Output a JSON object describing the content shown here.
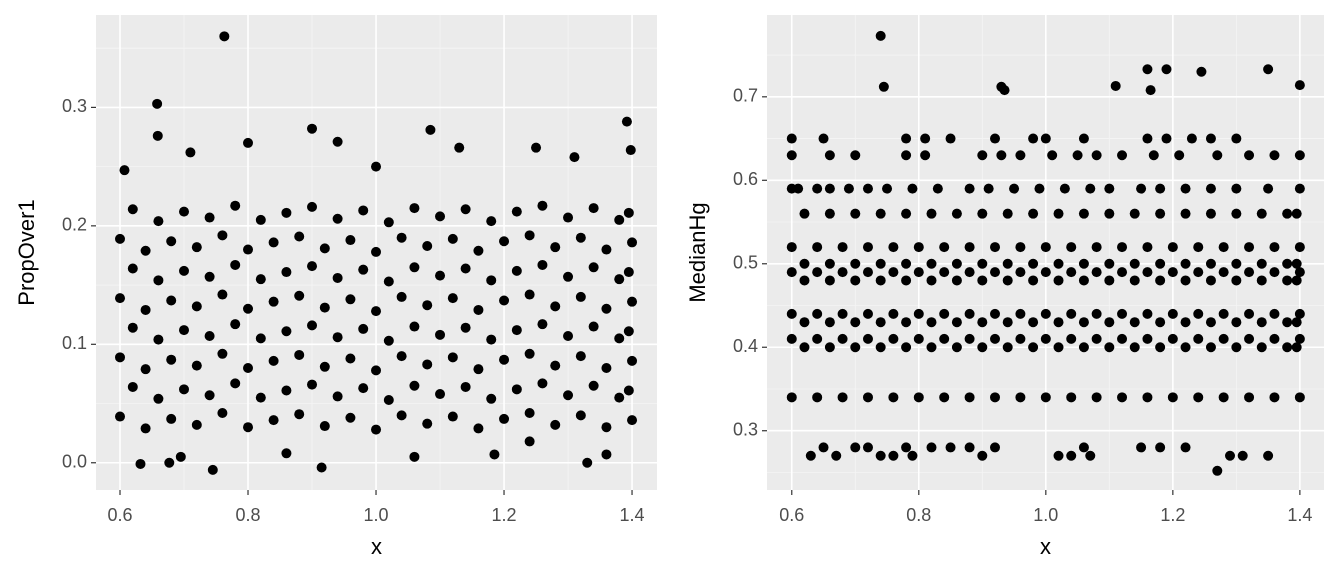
{
  "chart_data": [
    {
      "type": "scatter",
      "xlabel": "x",
      "ylabel": "PropOver1",
      "color": "#000000",
      "grid": true,
      "xlim": [
        0.5625,
        1.439
      ],
      "ylim": [
        -0.023,
        0.378
      ],
      "xticks": [
        0.6,
        0.8,
        {
          "value": 1,
          "label": "1.0"
        },
        1.2,
        1.4
      ],
      "yticks": [
        {
          "value": 0,
          "label": "0.0"
        },
        0.1,
        0.2,
        0.3
      ],
      "x_minor_ticks": [
        0.7,
        0.9,
        1.1,
        1.3
      ],
      "y_minor_ticks": [
        0.05,
        0.15,
        0.25,
        0.35
      ],
      "x": [
        0.6,
        0.64,
        0.68,
        0.72,
        0.76,
        0.8,
        0.84,
        0.88,
        0.92,
        0.96,
        1.0,
        1.04,
        1.08,
        1.12,
        1.16,
        1.2,
        1.24,
        1.28,
        1.32,
        1.36,
        1.4,
        0.62,
        0.66,
        0.7,
        0.74,
        0.78,
        0.82,
        0.86,
        0.9,
        0.94,
        0.98,
        1.02,
        1.06,
        1.1,
        1.14,
        1.18,
        1.22,
        1.26,
        1.3,
        1.34,
        1.38,
        1.395,
        0.6,
        0.64,
        0.68,
        0.72,
        0.76,
        0.8,
        0.84,
        0.88,
        0.92,
        0.96,
        1.0,
        1.04,
        1.08,
        1.12,
        1.16,
        1.2,
        1.24,
        1.28,
        1.32,
        1.36,
        1.4,
        0.62,
        0.66,
        0.7,
        0.74,
        0.78,
        0.82,
        0.86,
        0.9,
        0.94,
        0.98,
        1.02,
        1.06,
        1.1,
        1.14,
        1.18,
        1.22,
        1.26,
        1.3,
        1.34,
        1.38,
        1.395,
        0.6,
        0.64,
        0.68,
        0.72,
        0.76,
        0.8,
        0.84,
        0.88,
        0.92,
        0.96,
        1.0,
        1.04,
        1.08,
        1.12,
        1.16,
        1.2,
        1.24,
        1.28,
        1.32,
        1.36,
        1.4,
        0.62,
        0.66,
        0.7,
        0.74,
        0.78,
        0.82,
        0.86,
        0.9,
        0.94,
        0.98,
        1.02,
        1.06,
        1.1,
        1.14,
        1.18,
        1.22,
        1.26,
        1.3,
        1.34,
        1.38,
        1.395,
        0.6,
        0.64,
        0.68,
        0.72,
        0.76,
        0.8,
        0.84,
        0.88,
        0.92,
        0.96,
        1.0,
        1.04,
        1.08,
        1.12,
        1.16,
        1.2,
        1.24,
        1.28,
        1.32,
        1.36,
        1.4,
        0.62,
        0.66,
        0.7,
        0.74,
        0.78,
        0.82,
        0.86,
        0.9,
        0.94,
        0.98,
        1.02,
        1.06,
        1.1,
        1.14,
        1.18,
        1.22,
        1.26,
        1.3,
        1.34,
        1.38,
        1.395,
        0.763,
        0.658,
        0.659,
        0.9,
        1.392,
        1.398,
        1.085,
        0.915,
        0.745,
        1.33,
        0.632,
        0.8,
        1.25,
        0.94,
        1.31,
        0.607,
        0.71,
        1.0,
        1.13,
        0.677,
        0.695,
        1.06,
        1.185,
        1.24,
        1.36,
        0.86
      ],
      "values": [
        0.039,
        0.029,
        0.037,
        0.032,
        0.042,
        0.03,
        0.036,
        0.041,
        0.031,
        0.038,
        0.028,
        0.04,
        0.033,
        0.039,
        0.029,
        0.037,
        0.042,
        0.032,
        0.04,
        0.03,
        0.036,
        0.064,
        0.054,
        0.062,
        0.057,
        0.067,
        0.055,
        0.061,
        0.066,
        0.056,
        0.063,
        0.053,
        0.065,
        0.058,
        0.064,
        0.054,
        0.062,
        0.067,
        0.057,
        0.065,
        0.055,
        0.061,
        0.089,
        0.079,
        0.087,
        0.082,
        0.092,
        0.08,
        0.086,
        0.091,
        0.081,
        0.088,
        0.078,
        0.09,
        0.083,
        0.089,
        0.079,
        0.087,
        0.092,
        0.082,
        0.09,
        0.08,
        0.086,
        0.114,
        0.104,
        0.112,
        0.107,
        0.117,
        0.105,
        0.111,
        0.116,
        0.106,
        0.113,
        0.103,
        0.115,
        0.108,
        0.114,
        0.104,
        0.112,
        0.117,
        0.107,
        0.115,
        0.105,
        0.111,
        0.139,
        0.129,
        0.137,
        0.132,
        0.142,
        0.13,
        0.136,
        0.141,
        0.131,
        0.138,
        0.128,
        0.14,
        0.133,
        0.139,
        0.129,
        0.137,
        0.142,
        0.132,
        0.14,
        0.13,
        0.136,
        0.164,
        0.154,
        0.162,
        0.157,
        0.167,
        0.155,
        0.161,
        0.166,
        0.156,
        0.163,
        0.153,
        0.165,
        0.158,
        0.164,
        0.154,
        0.162,
        0.167,
        0.157,
        0.165,
        0.155,
        0.161,
        0.189,
        0.179,
        0.187,
        0.182,
        0.192,
        0.18,
        0.186,
        0.191,
        0.181,
        0.188,
        0.178,
        0.19,
        0.183,
        0.189,
        0.179,
        0.187,
        0.192,
        0.182,
        0.19,
        0.18,
        0.186,
        0.214,
        0.204,
        0.212,
        0.207,
        0.217,
        0.205,
        0.211,
        0.216,
        0.206,
        0.213,
        0.203,
        0.215,
        0.208,
        0.214,
        0.204,
        0.212,
        0.217,
        0.207,
        0.215,
        0.205,
        0.211,
        0.36,
        0.303,
        0.276,
        0.282,
        0.288,
        0.264,
        0.281,
        -0.004,
        -0.006,
        0.0,
        -0.001,
        0.27,
        0.266,
        0.271,
        0.258,
        0.247,
        0.262,
        0.25,
        0.266,
        0.0,
        0.005,
        0.005,
        0.007,
        0.018,
        0.007,
        0.008
      ]
    },
    {
      "type": "scatter",
      "xlabel": "x",
      "ylabel": "MedianHg",
      "color": "#000000",
      "grid": true,
      "xlim": [
        0.561,
        1.438
      ],
      "ylim": [
        0.229,
        0.798
      ],
      "xticks": [
        0.6,
        0.8,
        {
          "value": 1,
          "label": "1.0"
        },
        1.2,
        1.4
      ],
      "yticks": [
        0.3,
        0.4,
        0.5,
        0.6,
        0.7
      ],
      "x_minor_ticks": [
        0.7,
        0.9,
        1.1,
        1.3
      ],
      "y_minor_ticks": [
        0.25,
        0.35,
        0.45,
        0.55,
        0.65,
        0.75
      ],
      "x": [
        0.6,
        0.64,
        0.68,
        0.72,
        0.76,
        0.8,
        0.84,
        0.88,
        0.92,
        0.96,
        1.0,
        1.04,
        1.08,
        1.12,
        1.16,
        1.2,
        1.24,
        1.28,
        1.32,
        1.36,
        1.4,
        0.62,
        0.66,
        0.7,
        0.74,
        0.78,
        0.82,
        0.86,
        0.9,
        0.94,
        0.98,
        1.02,
        1.06,
        1.1,
        1.14,
        1.18,
        1.22,
        1.26,
        1.3,
        1.34,
        1.38,
        1.395,
        0.6,
        0.64,
        0.68,
        0.72,
        0.76,
        0.8,
        0.84,
        0.88,
        0.92,
        0.96,
        1.0,
        1.04,
        1.08,
        1.12,
        1.16,
        1.2,
        1.24,
        1.28,
        1.32,
        1.36,
        1.4,
        0.62,
        0.66,
        0.7,
        0.74,
        0.78,
        0.82,
        0.86,
        0.9,
        0.94,
        0.98,
        1.02,
        1.06,
        1.1,
        1.14,
        1.18,
        1.22,
        1.26,
        1.3,
        1.34,
        1.38,
        1.395,
        0.6,
        0.64,
        0.68,
        0.72,
        0.76,
        0.8,
        0.84,
        0.88,
        0.92,
        0.96,
        1.0,
        1.04,
        1.08,
        1.12,
        1.16,
        1.2,
        1.24,
        1.28,
        1.32,
        1.36,
        1.4,
        0.62,
        0.66,
        0.7,
        0.74,
        0.78,
        0.82,
        0.86,
        0.9,
        0.94,
        0.98,
        1.02,
        1.06,
        1.1,
        1.14,
        1.18,
        1.22,
        1.26,
        1.3,
        1.34,
        1.38,
        1.395,
        0.6,
        0.64,
        0.68,
        0.72,
        0.76,
        0.8,
        0.84,
        0.88,
        0.92,
        0.96,
        1.0,
        1.04,
        1.08,
        1.12,
        1.16,
        1.2,
        1.24,
        1.28,
        1.32,
        1.36,
        1.4,
        0.62,
        0.66,
        0.7,
        0.74,
        0.78,
        0.82,
        0.86,
        0.9,
        0.94,
        0.98,
        1.02,
        1.06,
        1.1,
        1.14,
        1.18,
        1.22,
        1.26,
        1.3,
        1.34,
        1.38,
        1.395,
        0.6,
        0.64,
        0.68,
        0.72,
        0.76,
        0.8,
        0.84,
        0.88,
        0.92,
        0.96,
        1.0,
        1.04,
        1.08,
        1.12,
        1.16,
        1.2,
        1.24,
        1.28,
        1.32,
        1.36,
        1.4,
        0.62,
        0.66,
        0.7,
        0.74,
        0.78,
        0.82,
        0.86,
        0.9,
        0.94,
        0.98,
        1.02,
        1.06,
        1.1,
        1.14,
        1.18,
        1.22,
        1.26,
        1.3,
        1.34,
        1.38,
        1.395,
        0.6,
        0.61,
        0.64,
        0.66,
        0.69,
        0.72,
        0.75,
        0.79,
        0.83,
        0.88,
        0.91,
        0.95,
        0.99,
        1.03,
        1.07,
        1.1,
        1.15,
        1.18,
        1.22,
        1.26,
        1.3,
        1.35,
        1.4,
        0.6,
        0.66,
        0.7,
        0.78,
        0.81,
        0.9,
        0.93,
        0.96,
        1.01,
        1.05,
        1.08,
        1.12,
        1.17,
        1.21,
        1.27,
        1.32,
        1.36,
        1.4,
        0.6,
        0.65,
        0.78,
        0.81,
        0.85,
        0.92,
        0.98,
        1.0,
        1.06,
        1.16,
        1.19,
        1.23,
        1.26,
        1.3,
        0.63,
        0.65,
        0.67,
        0.7,
        0.72,
        0.74,
        0.76,
        0.78,
        0.79,
        0.82,
        0.85,
        0.88,
        0.9,
        0.92,
        1.02,
        1.04,
        1.06,
        1.07,
        1.15,
        1.18,
        1.22,
        1.29,
        1.31,
        1.35,
        0.74,
        0.745,
        0.93,
        0.935,
        1.11,
        1.16,
        1.165,
        1.19,
        1.245,
        1.35,
        1.4,
        1.27
      ],
      "values": [
        0.34,
        0.34,
        0.34,
        0.34,
        0.34,
        0.34,
        0.34,
        0.34,
        0.34,
        0.34,
        0.34,
        0.34,
        0.34,
        0.34,
        0.34,
        0.34,
        0.34,
        0.34,
        0.34,
        0.34,
        0.34,
        0.4,
        0.4,
        0.4,
        0.4,
        0.4,
        0.4,
        0.4,
        0.4,
        0.4,
        0.4,
        0.4,
        0.4,
        0.4,
        0.4,
        0.4,
        0.4,
        0.4,
        0.4,
        0.4,
        0.4,
        0.4,
        0.41,
        0.41,
        0.41,
        0.41,
        0.41,
        0.41,
        0.41,
        0.41,
        0.41,
        0.41,
        0.41,
        0.41,
        0.41,
        0.41,
        0.41,
        0.41,
        0.41,
        0.41,
        0.41,
        0.41,
        0.41,
        0.43,
        0.43,
        0.43,
        0.43,
        0.43,
        0.43,
        0.43,
        0.43,
        0.43,
        0.43,
        0.43,
        0.43,
        0.43,
        0.43,
        0.43,
        0.43,
        0.43,
        0.43,
        0.43,
        0.43,
        0.43,
        0.44,
        0.44,
        0.44,
        0.44,
        0.44,
        0.44,
        0.44,
        0.44,
        0.44,
        0.44,
        0.44,
        0.44,
        0.44,
        0.44,
        0.44,
        0.44,
        0.44,
        0.44,
        0.44,
        0.44,
        0.44,
        0.48,
        0.48,
        0.48,
        0.48,
        0.48,
        0.48,
        0.48,
        0.48,
        0.48,
        0.48,
        0.48,
        0.48,
        0.48,
        0.48,
        0.48,
        0.48,
        0.48,
        0.48,
        0.48,
        0.48,
        0.48,
        0.49,
        0.49,
        0.49,
        0.49,
        0.49,
        0.49,
        0.49,
        0.49,
        0.49,
        0.49,
        0.49,
        0.49,
        0.49,
        0.49,
        0.49,
        0.49,
        0.49,
        0.49,
        0.49,
        0.49,
        0.49,
        0.5,
        0.5,
        0.5,
        0.5,
        0.5,
        0.5,
        0.5,
        0.5,
        0.5,
        0.5,
        0.5,
        0.5,
        0.5,
        0.5,
        0.5,
        0.5,
        0.5,
        0.5,
        0.5,
        0.5,
        0.5,
        0.52,
        0.52,
        0.52,
        0.52,
        0.52,
        0.52,
        0.52,
        0.52,
        0.52,
        0.52,
        0.52,
        0.52,
        0.52,
        0.52,
        0.52,
        0.52,
        0.52,
        0.52,
        0.52,
        0.52,
        0.52,
        0.56,
        0.56,
        0.56,
        0.56,
        0.56,
        0.56,
        0.56,
        0.56,
        0.56,
        0.56,
        0.56,
        0.56,
        0.56,
        0.56,
        0.56,
        0.56,
        0.56,
        0.56,
        0.56,
        0.56,
        0.56,
        0.59,
        0.59,
        0.59,
        0.59,
        0.59,
        0.59,
        0.59,
        0.59,
        0.59,
        0.59,
        0.59,
        0.59,
        0.59,
        0.59,
        0.59,
        0.59,
        0.59,
        0.59,
        0.59,
        0.59,
        0.59,
        0.59,
        0.59,
        0.63,
        0.63,
        0.63,
        0.63,
        0.63,
        0.63,
        0.63,
        0.63,
        0.63,
        0.63,
        0.63,
        0.63,
        0.63,
        0.63,
        0.63,
        0.63,
        0.63,
        0.63,
        0.65,
        0.65,
        0.65,
        0.65,
        0.65,
        0.65,
        0.65,
        0.65,
        0.65,
        0.65,
        0.65,
        0.65,
        0.65,
        0.65,
        0.27,
        0.28,
        0.27,
        0.28,
        0.28,
        0.27,
        0.27,
        0.28,
        0.27,
        0.28,
        0.28,
        0.28,
        0.27,
        0.28,
        0.27,
        0.27,
        0.28,
        0.27,
        0.28,
        0.28,
        0.28,
        0.27,
        0.27,
        0.27,
        0.773,
        0.712,
        0.712,
        0.708,
        0.713,
        0.733,
        0.708,
        0.733,
        0.73,
        0.733,
        0.714,
        0.252
      ]
    }
  ]
}
